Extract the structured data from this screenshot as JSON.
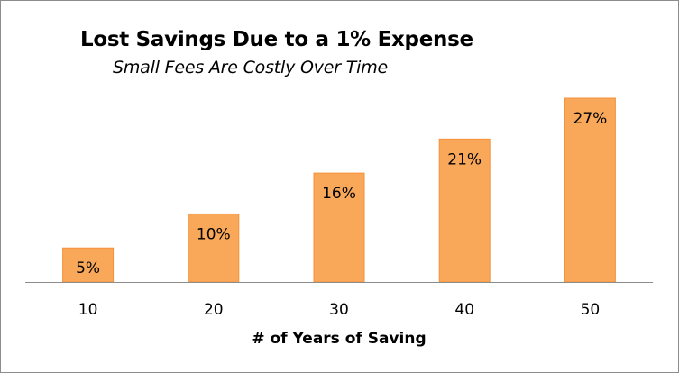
{
  "chart_data": {
    "type": "bar",
    "title": "Lost Savings Due to a 1% Expense",
    "subtitle": "Small Fees Are Costly Over Time",
    "xlabel": "# of Years of Saving",
    "ylabel": "",
    "categories": [
      "10",
      "20",
      "30",
      "40",
      "50"
    ],
    "values": [
      5,
      10,
      16,
      21,
      27
    ],
    "data_labels": [
      "5%",
      "10%",
      "16%",
      "21%",
      "27%"
    ],
    "ylim": [
      0,
      27
    ],
    "grid": false,
    "legend": "none",
    "bar_color": "#F9A85A",
    "bar_edge_color": "#F5913A"
  }
}
